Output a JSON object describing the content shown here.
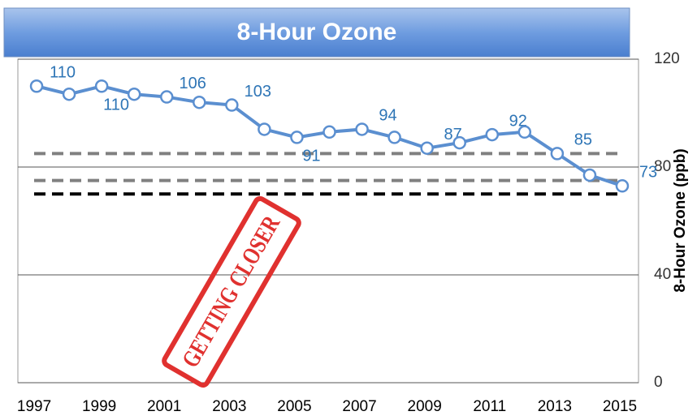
{
  "chart_data": {
    "type": "line",
    "title": "8-Hour Ozone",
    "y_axis_label": "8-Hour Ozone (ppb)",
    "x": [
      1997,
      1998,
      1999,
      2000,
      2001,
      2002,
      2003,
      2004,
      2005,
      2006,
      2007,
      2008,
      2009,
      2010,
      2011,
      2012,
      2013,
      2014,
      2015
    ],
    "series": [
      {
        "color": "#5b8fd0",
        "values": [
          110,
          107,
          110,
          107,
          106,
          104,
          103,
          94,
          91,
          93,
          94,
          91,
          87,
          89,
          92,
          93,
          85,
          77,
          73
        ]
      }
    ],
    "xlim": [
      1996.5,
      2015.5
    ],
    "xticks": [
      1997,
      1999,
      2001,
      2003,
      2005,
      2007,
      2009,
      2011,
      2013,
      2015
    ],
    "ylim": [
      0,
      120
    ],
    "yticks": [
      0,
      40,
      80,
      120
    ],
    "grid": true,
    "reference_lines": [
      {
        "value": 85,
        "color": "#808080"
      },
      {
        "value": 75,
        "color": "#808080"
      },
      {
        "value": 70,
        "color": "#000000"
      }
    ],
    "stamp": "GETTING CLOSER"
  }
}
